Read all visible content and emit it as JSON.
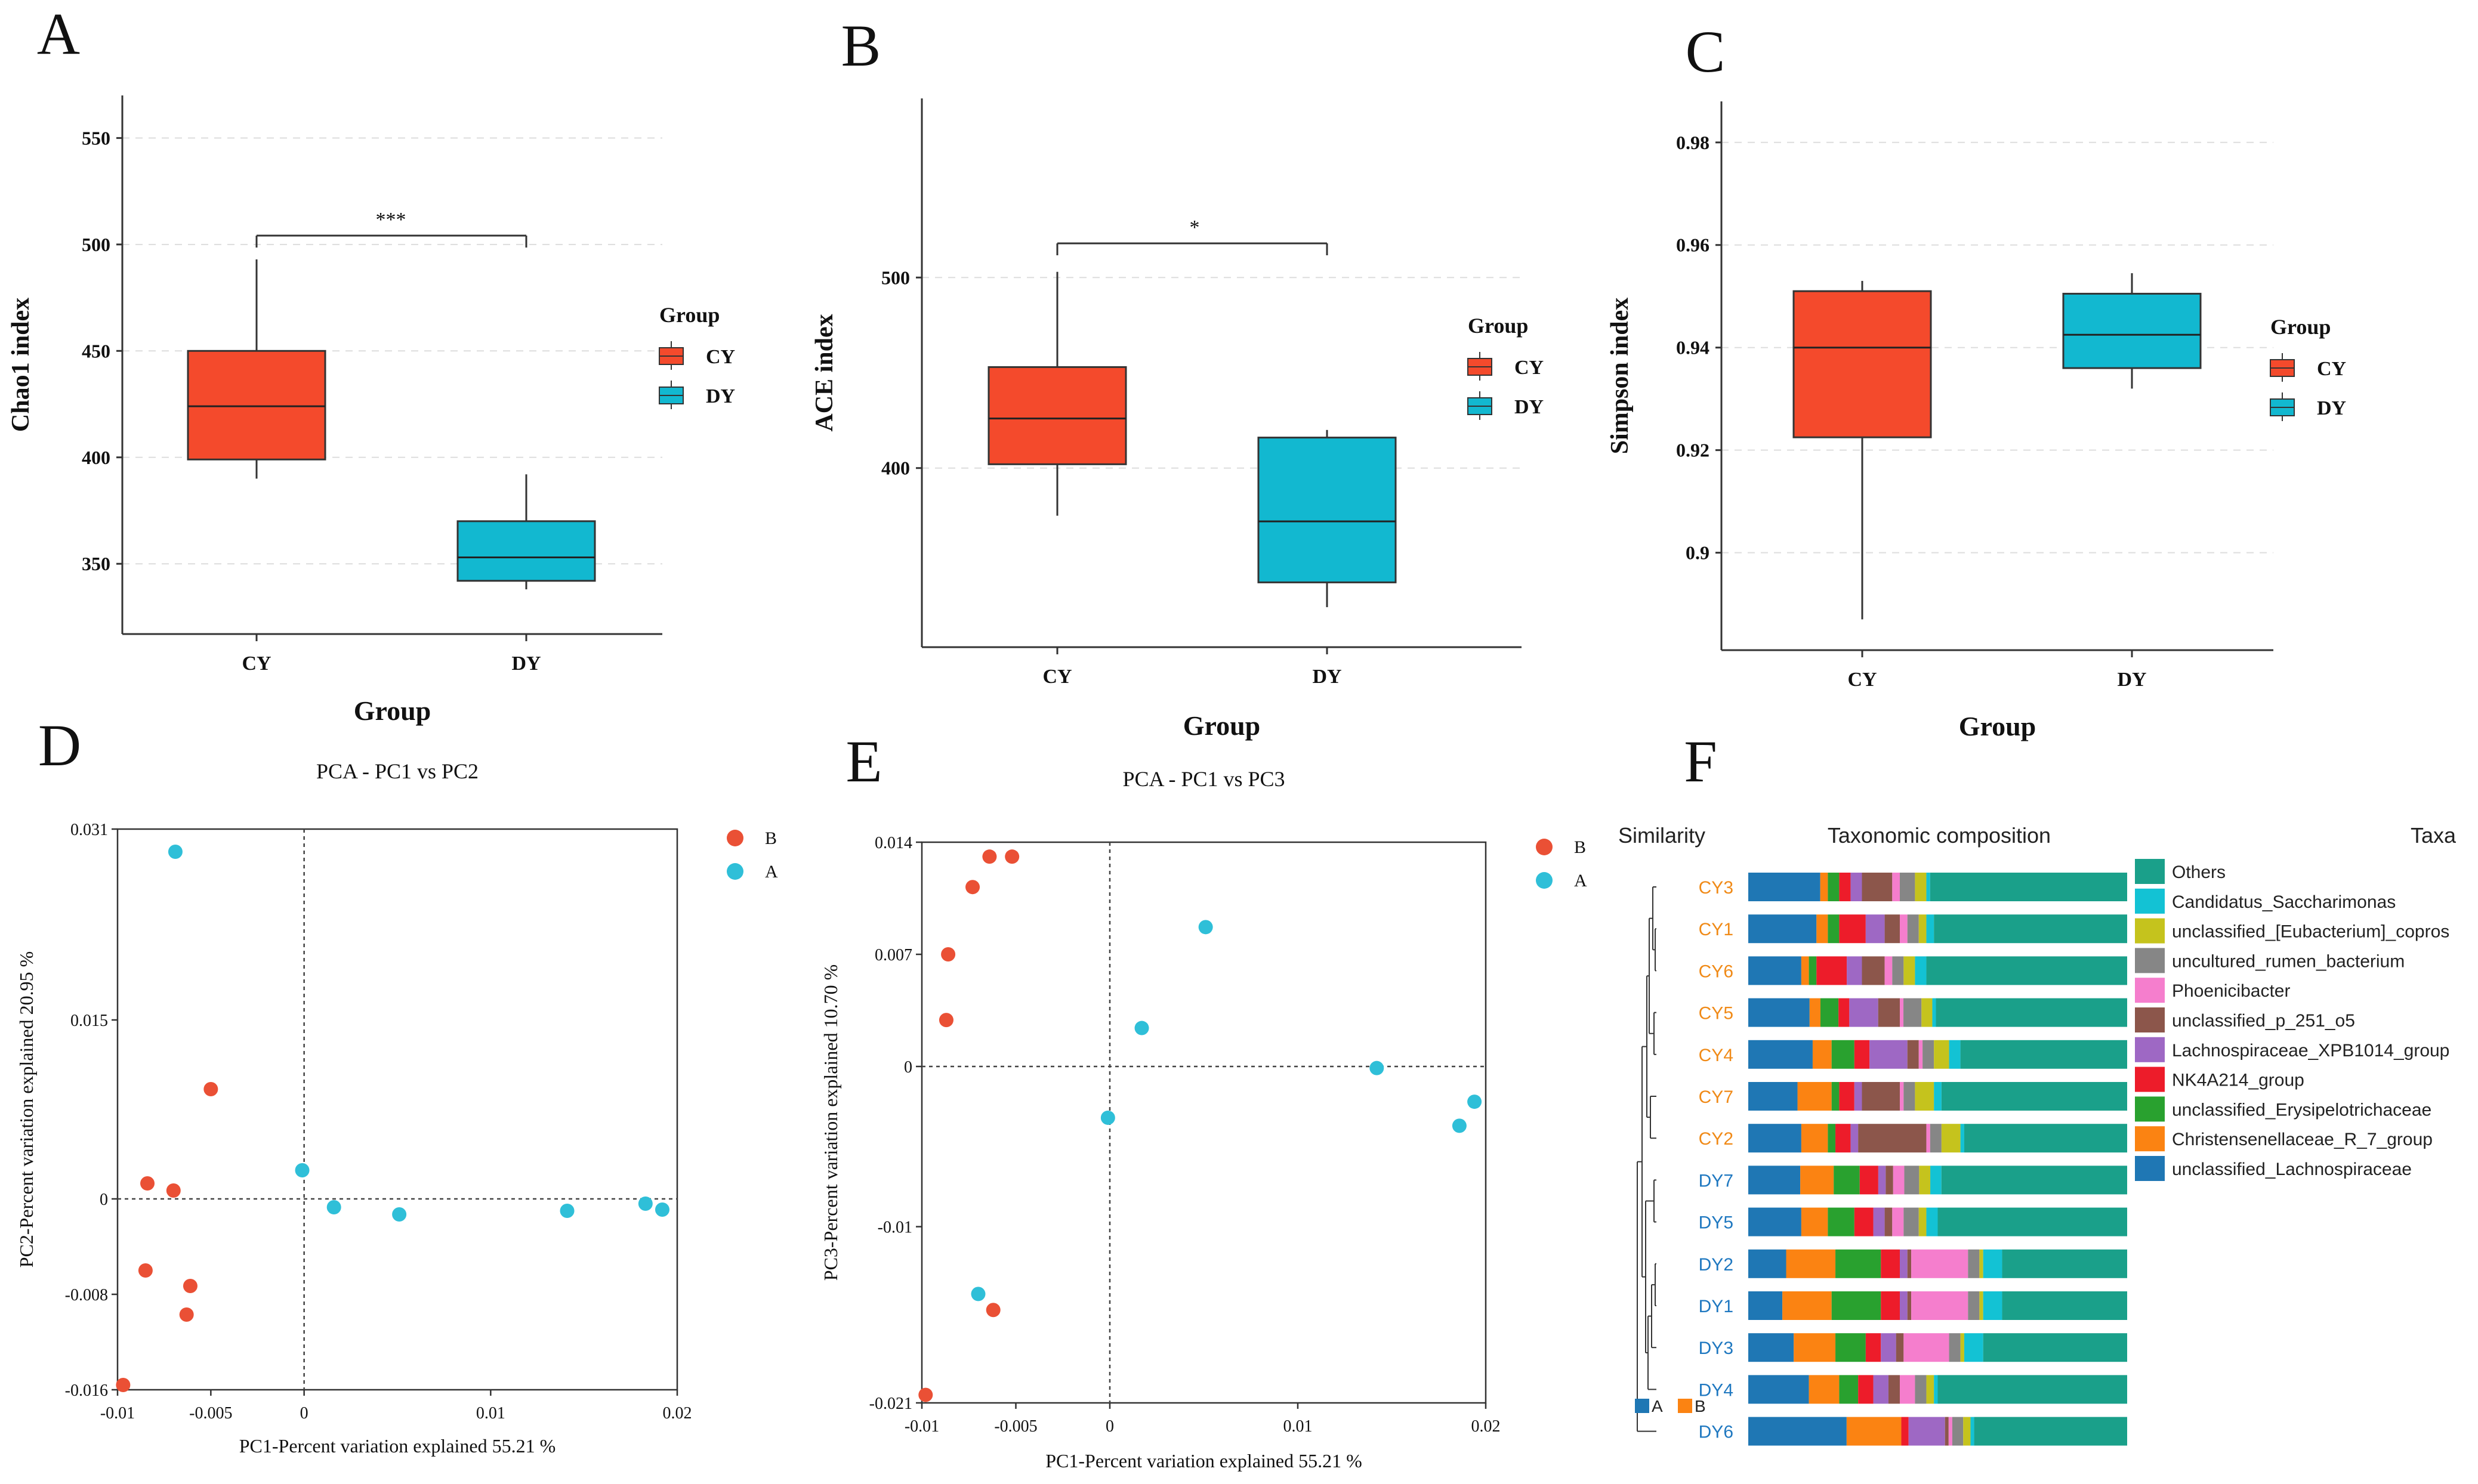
{
  "colors": {
    "CY": "#f44a2c",
    "DY": "#12b8d0",
    "B": "#ea5035",
    "A": "#2fbfd8",
    "axis": "#333333",
    "grid": "#dddddd"
  },
  "chart_data": [
    {
      "id": "A",
      "type": "box",
      "panel_label": "A",
      "ylabel": "Chao1 index",
      "xlabel": "Group",
      "ylim": [
        317,
        570
      ],
      "yticks": [
        350,
        400,
        450,
        500,
        550
      ],
      "categories": [
        "CY",
        "DY"
      ],
      "boxes": [
        {
          "group": "CY",
          "whisker_low": 390,
          "q1": 399,
          "median": 424,
          "q3": 450,
          "whisker_high": 493
        },
        {
          "group": "DY",
          "whisker_low": 338,
          "q1": 342,
          "median": 353,
          "q3": 370,
          "whisker_high": 392
        }
      ],
      "significance": "***",
      "legend_title": "Group",
      "legend_items": [
        "CY",
        "DY"
      ]
    },
    {
      "id": "B",
      "type": "box",
      "panel_label": "B",
      "ylabel": "ACE index",
      "xlabel": "Group",
      "ylim": [
        306,
        594
      ],
      "yticks": [
        400,
        500
      ],
      "categories": [
        "CY",
        "DY"
      ],
      "boxes": [
        {
          "group": "CY",
          "whisker_low": 375,
          "q1": 402,
          "median": 426,
          "q3": 453,
          "whisker_high": 503
        },
        {
          "group": "DY",
          "whisker_low": 327,
          "q1": 340,
          "median": 372,
          "q3": 416,
          "whisker_high": 420
        }
      ],
      "significance": "*",
      "legend_title": "Group",
      "legend_items": [
        "CY",
        "DY"
      ]
    },
    {
      "id": "C",
      "type": "box",
      "panel_label": "C",
      "ylabel": "Simpson index",
      "xlabel": "Group",
      "ylim": [
        0.881,
        0.988
      ],
      "yticks": [
        "0.9",
        "0.92",
        "0.94",
        "0.96",
        "0.98"
      ],
      "categories": [
        "CY",
        "DY"
      ],
      "boxes": [
        {
          "group": "CY",
          "whisker_low": 0.887,
          "q1": 0.9225,
          "median": 0.94,
          "q3": 0.951,
          "whisker_high": 0.953
        },
        {
          "group": "DY",
          "whisker_low": 0.932,
          "q1": 0.936,
          "median": 0.9425,
          "q3": 0.9505,
          "whisker_high": 0.9545
        }
      ],
      "legend_title": "Group",
      "legend_items": [
        "CY",
        "DY"
      ]
    },
    {
      "id": "D",
      "type": "scatter",
      "panel_label": "D",
      "title": "PCA - PC1 vs PC2",
      "xlabel": "PC1-Percent variation explained 55.21 %",
      "ylabel": "PC2-Percent variation explained 20.95 %",
      "xlim": [
        -0.01,
        0.02
      ],
      "ylim": [
        -0.016,
        0.031
      ],
      "xticks": [
        "-0.01",
        "-0.005",
        "0",
        "0.01",
        "0.02"
      ],
      "yticks": [
        "-0.016",
        "-0.008",
        "0",
        "0.015",
        "0.031"
      ],
      "legend_items": [
        "B",
        "A"
      ],
      "series": [
        {
          "name": "B",
          "points": [
            [
              -0.0097,
              -0.0156
            ],
            [
              -0.0085,
              -0.006
            ],
            [
              -0.0084,
              0.0013
            ],
            [
              -0.007,
              0.0007
            ],
            [
              -0.0063,
              -0.0097
            ],
            [
              -0.0061,
              -0.0073
            ],
            [
              -0.005,
              0.0092
            ]
          ]
        },
        {
          "name": "A",
          "points": [
            [
              -0.0069,
              0.0291
            ],
            [
              -0.0001,
              0.0024
            ],
            [
              0.0016,
              -0.0007
            ],
            [
              0.0051,
              -0.0013
            ],
            [
              0.0141,
              -0.001
            ],
            [
              0.0183,
              -0.0004
            ],
            [
              0.0192,
              -0.0009
            ]
          ]
        }
      ]
    },
    {
      "id": "E",
      "type": "scatter",
      "panel_label": "E",
      "title": "PCA - PC1 vs PC3",
      "xlabel": "PC1-Percent variation explained 55.21 %",
      "ylabel": "PC3-Percent variation explained 10.70 %",
      "xlim": [
        -0.01,
        0.02
      ],
      "ylim": [
        -0.021,
        0.014
      ],
      "xticks": [
        "-0.01",
        "-0.005",
        "0",
        "0.01",
        "0.02"
      ],
      "yticks": [
        "-0.021",
        "-0.01",
        "0",
        "0.007",
        "0.014"
      ],
      "legend_items": [
        "B",
        "A"
      ],
      "series": [
        {
          "name": "B",
          "points": [
            [
              -0.0098,
              -0.0205
            ],
            [
              -0.0087,
              0.0029
            ],
            [
              -0.0086,
              0.007
            ],
            [
              -0.0073,
              0.0112
            ],
            [
              -0.0064,
              0.0131
            ],
            [
              -0.0062,
              -0.0152
            ],
            [
              -0.0052,
              0.0131
            ]
          ]
        },
        {
          "name": "A",
          "points": [
            [
              -0.007,
              -0.0142
            ],
            [
              -0.0001,
              -0.0032
            ],
            [
              0.0017,
              0.0024
            ],
            [
              0.0051,
              0.0087
            ],
            [
              0.0142,
              -0.0001
            ],
            [
              0.0186,
              -0.0037
            ],
            [
              0.0194,
              -0.0022
            ]
          ]
        }
      ]
    },
    {
      "id": "F",
      "type": "stacked_bar",
      "panel_label": "F",
      "headers": {
        "similarity": "Similarity",
        "composition": "Taxonomic composition",
        "taxa": "Taxa"
      },
      "taxa": [
        {
          "name": "Others",
          "color": "#1aa08a"
        },
        {
          "name": "Candidatus_Saccharimonas",
          "color": "#13c2d4"
        },
        {
          "name": "unclassified_[Eubacterium]_copros",
          "color": "#c5c31d"
        },
        {
          "name": "uncultured_rumen_bacterium",
          "color": "#868686"
        },
        {
          "name": "Phoenicibacter",
          "color": "#f57ecd"
        },
        {
          "name": "unclassified_p_251_o5",
          "color": "#8c564b"
        },
        {
          "name": "Lachnospiraceae_XPB1014_group",
          "color": "#9e68c4"
        },
        {
          "name": "NK4A214_group",
          "color": "#ed1c2a"
        },
        {
          "name": "unclassified_Erysipelotrichaceae",
          "color": "#29a12f"
        },
        {
          "name": "Christensenellaceae_R_7_group",
          "color": "#fb8312"
        },
        {
          "name": "unclassified_Lachnospiraceae",
          "color": "#1f77b4"
        }
      ],
      "samples": [
        {
          "name": "CY3",
          "group": "B",
          "values": [
            52,
            1,
            3,
            4,
            2,
            8,
            3,
            3,
            3,
            2,
            19
          ]
        },
        {
          "name": "CY1",
          "group": "B",
          "values": [
            51,
            2,
            2,
            3,
            2,
            4,
            5,
            7,
            3,
            3,
            18
          ]
        },
        {
          "name": "CY6",
          "group": "B",
          "values": [
            53,
            3,
            3,
            3,
            2,
            6,
            4,
            8,
            2,
            2,
            14
          ]
        },
        {
          "name": "CY5",
          "group": "B",
          "values": [
            53,
            1,
            3,
            5,
            1,
            6,
            8,
            3,
            5,
            3,
            17
          ]
        },
        {
          "name": "CY4",
          "group": "B",
          "values": [
            44,
            3,
            4,
            3,
            1,
            3,
            10,
            4,
            6,
            5,
            17
          ]
        },
        {
          "name": "CY7",
          "group": "B",
          "values": [
            49,
            2,
            5,
            3,
            1,
            10,
            2,
            4,
            2,
            9,
            13
          ]
        },
        {
          "name": "CY2",
          "group": "B",
          "values": [
            43,
            1,
            5,
            3,
            1,
            18,
            2,
            4,
            2,
            7,
            14
          ]
        },
        {
          "name": "DY7",
          "group": "A",
          "values": [
            50,
            3,
            3,
            4,
            3,
            2,
            2,
            5,
            7,
            9,
            14
          ]
        },
        {
          "name": "DY5",
          "group": "A",
          "values": [
            50,
            3,
            2,
            4,
            3,
            2,
            3,
            5,
            7,
            7,
            14
          ]
        },
        {
          "name": "DY2",
          "group": "A",
          "values": [
            33,
            5,
            1,
            3,
            15,
            1,
            2,
            5,
            12,
            13,
            10
          ]
        },
        {
          "name": "DY1",
          "group": "A",
          "values": [
            33,
            5,
            1,
            3,
            15,
            1,
            2,
            5,
            13,
            13,
            9
          ]
        },
        {
          "name": "DY3",
          "group": "A",
          "values": [
            38,
            5,
            1,
            3,
            12,
            2,
            4,
            4,
            8,
            11,
            12
          ]
        },
        {
          "name": "DY4",
          "group": "A",
          "values": [
            50,
            1,
            2,
            3,
            4,
            3,
            4,
            4,
            5,
            8,
            16
          ]
        },
        {
          "name": "DY6",
          "group": "A",
          "values": [
            42,
            1,
            2,
            3,
            1,
            1,
            10,
            2,
            0,
            15,
            27
          ]
        }
      ],
      "group_legend": [
        {
          "label": "A",
          "color": "#1f77b4"
        },
        {
          "label": "B",
          "color": "#fb8312"
        }
      ],
      "label_colors": {
        "B": "#f08a17",
        "A": "#1f78c0"
      }
    }
  ]
}
